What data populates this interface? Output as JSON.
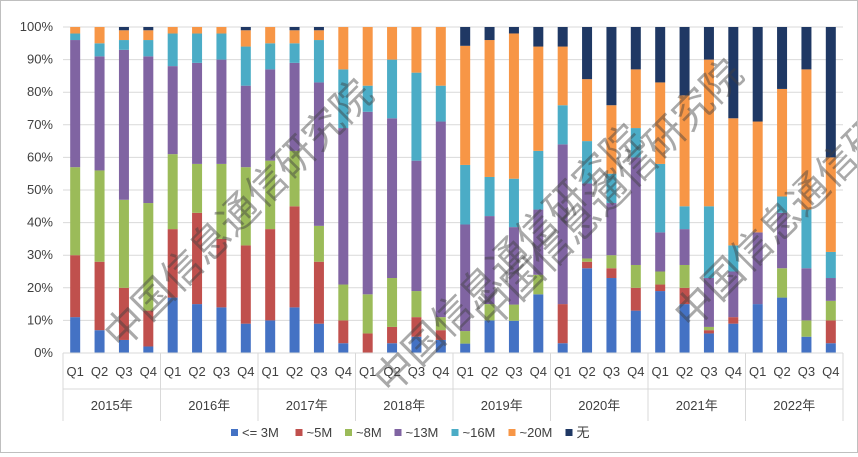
{
  "chart_data": {
    "type": "bar",
    "stacked": true,
    "percent": true,
    "title": "",
    "ylim": [
      0,
      100
    ],
    "yticks": [
      "0%",
      "10%",
      "20%",
      "30%",
      "40%",
      "50%",
      "60%",
      "70%",
      "80%",
      "90%",
      "100%"
    ],
    "years": [
      "2015年",
      "2016年",
      "2017年",
      "2018年",
      "2019年",
      "2020年",
      "2021年",
      "2022年"
    ],
    "quarters": [
      "Q1",
      "Q2",
      "Q3",
      "Q4"
    ],
    "watermark": "中国信息通信研究院",
    "series": [
      {
        "name": "<= 3M",
        "color": "#4472c4",
        "values": [
          11,
          7,
          4,
          2,
          17,
          15,
          14,
          9,
          10,
          14,
          9,
          3,
          0,
          3,
          5,
          4,
          3,
          10,
          10,
          18,
          3,
          26,
          23,
          13,
          19,
          15,
          6,
          9,
          15,
          17,
          5,
          3
        ]
      },
      {
        "name": "~5M",
        "color": "#c0504d",
        "values": [
          19,
          21,
          16,
          11,
          21,
          28,
          21,
          24,
          28,
          31,
          19,
          7,
          6,
          5,
          6,
          3,
          0,
          0,
          0,
          0,
          12,
          2,
          3,
          7,
          2,
          5,
          1,
          2,
          0,
          0,
          0,
          7
        ]
      },
      {
        "name": "~8M",
        "color": "#9bbb59",
        "values": [
          27,
          28,
          27,
          33,
          23,
          15,
          23,
          24,
          21,
          17,
          11,
          11,
          12,
          15,
          8,
          4,
          4,
          5,
          5,
          6,
          0,
          1,
          4,
          7,
          4,
          7,
          1,
          0,
          0,
          9,
          5,
          6
        ]
      },
      {
        "name": "~13M",
        "color": "#8064a2",
        "values": [
          39,
          35,
          46,
          45,
          27,
          31,
          32,
          25,
          28,
          27,
          44,
          48,
          56,
          49,
          40,
          60,
          34,
          27,
          24,
          20,
          49,
          23,
          16,
          33,
          12,
          11,
          15,
          14,
          22,
          17,
          16,
          7
        ]
      },
      {
        "name": "~16M",
        "color": "#4bacc6",
        "values": [
          2,
          4,
          3,
          5,
          10,
          9,
          8,
          12,
          8,
          6,
          13,
          18,
          8,
          18,
          27,
          11,
          19,
          12,
          15,
          18,
          12,
          13,
          9,
          9,
          21,
          7,
          22,
          8,
          0,
          5,
          18,
          8
        ]
      },
      {
        "name": "~20M",
        "color": "#f79646",
        "values": [
          2,
          5,
          3,
          3,
          2,
          2,
          2,
          5,
          5,
          4,
          3,
          13,
          18,
          10,
          14,
          18,
          38,
          42,
          45,
          32,
          18,
          19,
          21,
          18,
          25,
          34,
          45,
          39,
          34,
          33,
          43,
          29
        ]
      },
      {
        "name": "无",
        "color": "#1f3864",
        "values": [
          0,
          0,
          1,
          1,
          0,
          0,
          0,
          1,
          0,
          1,
          1,
          0,
          0,
          0,
          0,
          0,
          6,
          4,
          2,
          6,
          6,
          16,
          24,
          13,
          17,
          21,
          10,
          28,
          29,
          19,
          13,
          40
        ]
      }
    ]
  }
}
